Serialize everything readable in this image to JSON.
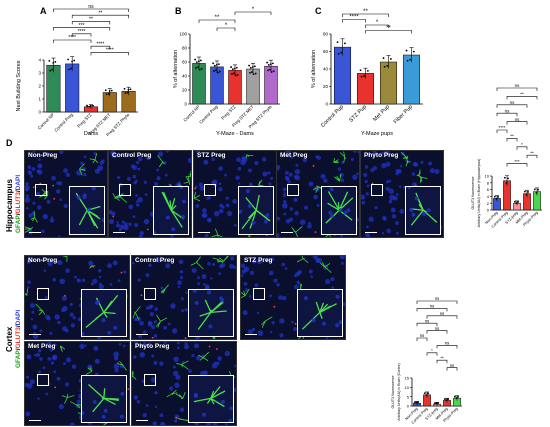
{
  "panels": {
    "A": {
      "letter": "A",
      "ylabel": "Nest Building Scores",
      "xlabel": "Dams",
      "categories": [
        "Control NP",
        "Control Preg",
        "Preg STZ",
        "Preg STZ MET",
        "Preg STZ Phyto"
      ],
      "colors": [
        "#2e8b57",
        "#3a56d6",
        "#e8322e",
        "#9c6b1e",
        "#9c6b1e"
      ],
      "values": [
        3.6,
        3.7,
        0.4,
        1.5,
        1.6
      ],
      "ylim": [
        0,
        4
      ],
      "ticks": [
        0,
        1,
        2,
        3,
        4
      ],
      "sig": [
        "ns",
        "**",
        "**",
        "***",
        "****",
        "****",
        "****",
        "****"
      ]
    },
    "B": {
      "letter": "B",
      "ylabel": "% of alternation",
      "xlabel": "Y-Maze - Dams",
      "categories": [
        "Control NP",
        "Control Preg",
        "Preg STZ",
        "Preg STZ MET",
        "Preg STZ Phyto"
      ],
      "colors": [
        "#2e8b57",
        "#3a56d6",
        "#e8322e",
        "#a0a0a0",
        "#b06acb"
      ],
      "values": [
        58,
        53,
        48,
        50,
        54
      ],
      "ylim": [
        0,
        100
      ],
      "ticks": [
        0,
        20,
        40,
        60,
        80,
        100
      ],
      "sig": [
        "*",
        "**",
        "*"
      ]
    },
    "C": {
      "letter": "C",
      "ylabel": "% of alternation",
      "xlabel": "Y-Maze pups",
      "categories": [
        "Control Pup",
        "STZ Pup",
        "Met Pup",
        "Fiber Pup"
      ],
      "colors": [
        "#3a56d6",
        "#e8322e",
        "#9c8a3c",
        "#3a9bd6"
      ],
      "values": [
        65,
        35,
        48,
        56
      ],
      "ylim": [
        0,
        80
      ],
      "ticks": [
        0,
        20,
        40,
        60,
        80
      ],
      "sig": [
        "**",
        "****",
        "*",
        "**"
      ]
    },
    "D": {
      "letter": "D"
    }
  },
  "regions": {
    "hippocampus": "Hippocampus",
    "cortex": "Cortex"
  },
  "stain": {
    "gfap": "GFAP",
    "slash1": "/",
    "glut3": "GLUT3",
    "slash2": "/",
    "dapi": "DAPI"
  },
  "micrographs": {
    "hippo": [
      "Non-Preg",
      "Control Preg",
      "STZ Preg",
      "Met Preg",
      "Phyto Preg"
    ],
    "cortex_top": [
      "Non-Preg",
      "Control Preg",
      "STZ Preg"
    ],
    "cortex_bottom": [
      "Met Preg",
      "Phyto Preg"
    ]
  },
  "quant": {
    "hippo": {
      "ylabel": "GLUT3 fluorescence",
      "ylabel2": "Arbitrary Units(AU) in Brain (Hippocampus)",
      "categories": [
        "Non-Preg",
        "Control Preg",
        "STZ-preg",
        "Met-Preg",
        "Phyto-Preg"
      ],
      "colors": [
        "#3a56d6",
        "#e8322e",
        "#ff8fa0",
        "#e8322e",
        "#4cd64c"
      ],
      "values": [
        3.4,
        8.6,
        2.0,
        4.8,
        5.4
      ],
      "ylim": [
        0,
        10
      ],
      "ticks": [
        0,
        2,
        4,
        6,
        8,
        10
      ],
      "sig": [
        "ns",
        "**",
        "ns",
        "ns",
        "ns",
        "****",
        "**",
        "*",
        "**",
        "***"
      ]
    },
    "cortex": {
      "ylabel": "GLUT3 fluorescence",
      "ylabel2": "Arbitrary Units(AU) in Brain (Cortex)",
      "categories": [
        "Non-Preg",
        "Control Preg",
        "STZ-preg",
        "Met-Preg",
        "Phyto-Preg"
      ],
      "colors": [
        "#3a56d6",
        "#e8322e",
        "#ff8fa0",
        "#e8322e",
        "#4cd64c"
      ],
      "values": [
        1.5,
        6.0,
        1.0,
        3.0,
        4.2
      ],
      "ylim": [
        0,
        15
      ],
      "ticks": [
        0,
        5,
        10,
        15
      ],
      "sig": [
        "ns",
        "ns",
        "ns",
        "ns",
        "ns",
        "ns",
        "ns",
        "*",
        "**",
        "ns"
      ]
    }
  },
  "chart_data": [
    {
      "type": "bar",
      "categories": [
        "Control NP",
        "Control Preg",
        "Preg STZ",
        "Preg STZ MET",
        "Preg STZ Phyto"
      ],
      "values": [
        3.6,
        3.7,
        0.4,
        1.5,
        1.6
      ],
      "xlabel": "Dams",
      "ylabel": "Nest Building Scores",
      "ylim": [
        0,
        4
      ]
    },
    {
      "type": "bar",
      "categories": [
        "Control NP",
        "Control Preg",
        "Preg STZ",
        "Preg STZ MET",
        "Preg STZ Phyto"
      ],
      "values": [
        58,
        53,
        48,
        50,
        54
      ],
      "xlabel": "Y-Maze - Dams",
      "ylabel": "% of alternation",
      "ylim": [
        0,
        100
      ]
    },
    {
      "type": "bar",
      "categories": [
        "Control Pup",
        "STZ Pup",
        "Met Pup",
        "Fiber Pup"
      ],
      "values": [
        65,
        35,
        48,
        56
      ],
      "xlabel": "Y-Maze pups",
      "ylabel": "% of alternation",
      "ylim": [
        0,
        80
      ]
    },
    {
      "type": "bar",
      "categories": [
        "Non-Preg",
        "Control Preg",
        "STZ-preg",
        "Met-Preg",
        "Phyto-Preg"
      ],
      "values": [
        3.4,
        8.6,
        2.0,
        4.8,
        5.4
      ],
      "ylabel": "GLUT3 fluorescence Arbitrary Units(AU) in Brain (Hippocampus)",
      "ylim": [
        0,
        10
      ]
    },
    {
      "type": "bar",
      "categories": [
        "Non-Preg",
        "Control Preg",
        "STZ-preg",
        "Met-Preg",
        "Phyto-Preg"
      ],
      "values": [
        1.5,
        6.0,
        1.0,
        3.0,
        4.2
      ],
      "ylabel": "GLUT3 fluorescence Arbitrary Units(AU) in Brain (Cortex)",
      "ylim": [
        0,
        15
      ]
    }
  ]
}
